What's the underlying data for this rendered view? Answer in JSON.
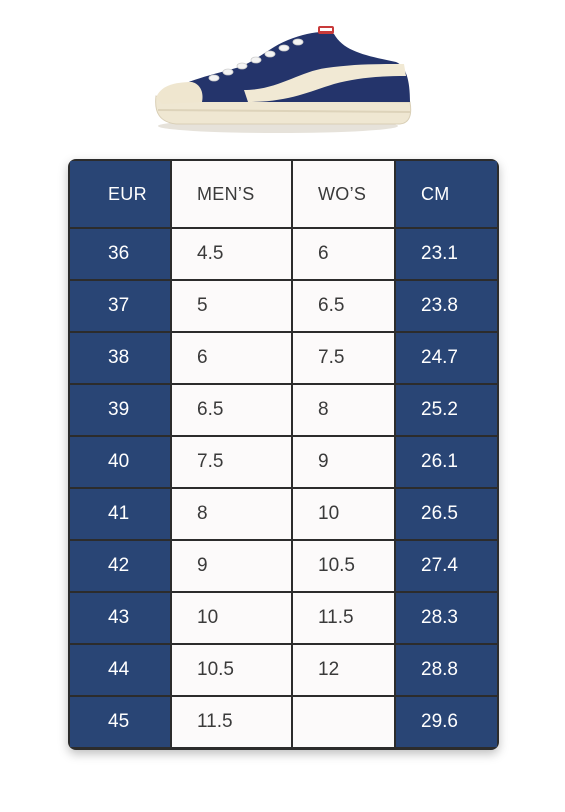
{
  "colors": {
    "accent": "#294575",
    "border": "#2c2c2c",
    "light_cell": "#fcfafa",
    "text_dark": "#3a3a3a"
  },
  "image": {
    "icon": "navy-canvas-sneaker-icon"
  },
  "table": {
    "headers": [
      "EUR",
      "MEN’S",
      "WO’S",
      "CM"
    ],
    "rows": [
      [
        "36",
        "4.5",
        "6",
        "23.1"
      ],
      [
        "37",
        "5",
        "6.5",
        "23.8"
      ],
      [
        "38",
        "6",
        "7.5",
        "24.7"
      ],
      [
        "39",
        "6.5",
        "8",
        "25.2"
      ],
      [
        "40",
        "7.5",
        "9",
        "26.1"
      ],
      [
        "41",
        "8",
        "10",
        "26.5"
      ],
      [
        "42",
        "9",
        "10.5",
        "27.4"
      ],
      [
        "43",
        "10",
        "11.5",
        "28.3"
      ],
      [
        "44",
        "10.5",
        "12",
        "28.8"
      ],
      [
        "45",
        "11.5",
        "",
        "29.6"
      ]
    ]
  }
}
